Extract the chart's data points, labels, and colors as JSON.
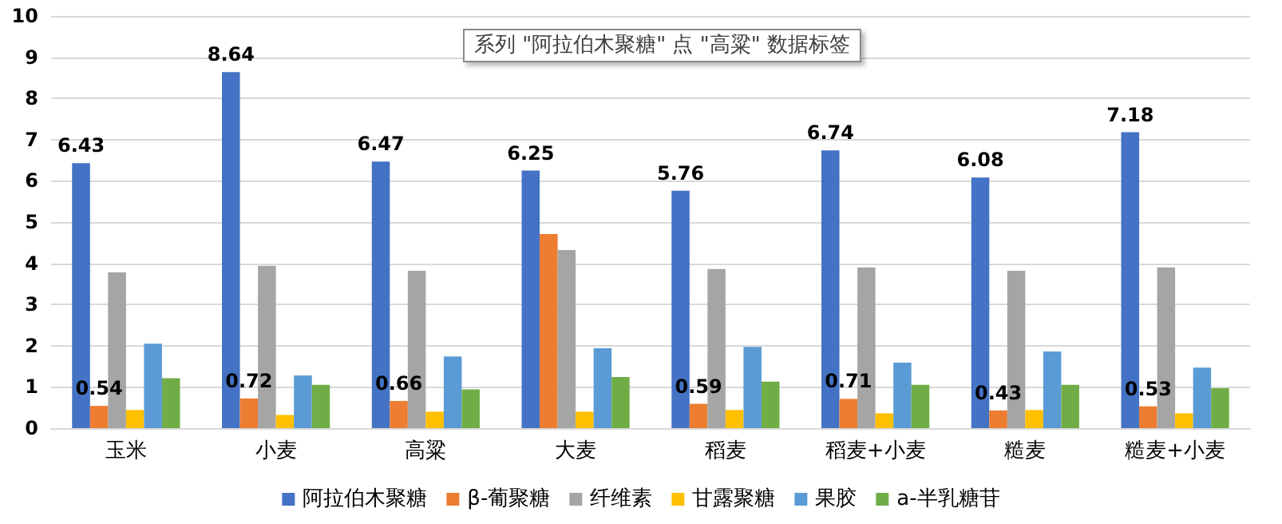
{
  "chart_data": {
    "type": "bar",
    "categories": [
      "玉米",
      "小麦",
      "高粱",
      "大麦",
      "稻麦",
      "稻麦+小麦",
      "糙麦",
      "糙麦+小麦"
    ],
    "series": [
      {
        "name": "阿拉伯木聚糖",
        "color": "#4472c4",
        "values": [
          6.43,
          8.64,
          6.47,
          6.25,
          5.76,
          6.74,
          6.08,
          7.18
        ],
        "value_labels": [
          "6.43",
          "8.64",
          "6.47",
          "6.25",
          "5.76",
          "6.74",
          "6.08",
          "7.18"
        ]
      },
      {
        "name": "β-葡聚糖",
        "color": "#ed7d31",
        "values": [
          0.54,
          0.72,
          0.66,
          4.71,
          0.59,
          0.71,
          0.43,
          0.53
        ],
        "value_labels": [
          "0.54",
          "0.72",
          "0.66",
          null,
          "0.59",
          "0.71",
          "0.43",
          "0.53"
        ]
      },
      {
        "name": "纤维素",
        "color": "#a5a5a5",
        "values": [
          3.78,
          3.94,
          3.82,
          4.32,
          3.86,
          3.9,
          3.82,
          3.9
        ]
      },
      {
        "name": "甘露聚糖",
        "color": "#ffc000",
        "values": [
          0.44,
          0.32,
          0.4,
          0.4,
          0.44,
          0.36,
          0.44,
          0.36
        ]
      },
      {
        "name": "果胶",
        "color": "#5b9bd5",
        "values": [
          2.05,
          1.28,
          1.74,
          1.94,
          1.97,
          1.59,
          1.86,
          1.47
        ]
      },
      {
        "name": "a-半乳糖苷",
        "color": "#70ad47",
        "values": [
          1.21,
          1.05,
          0.94,
          1.24,
          1.13,
          1.05,
          1.05,
          0.97
        ]
      }
    ],
    "ylim": [
      0,
      10
    ],
    "yticks": [
      0,
      1,
      2,
      3,
      4,
      5,
      6,
      7,
      8,
      9,
      10
    ],
    "grid": "y",
    "legend": "bottom",
    "annotations": [
      "系列 \"阿拉伯木聚糖\" 点 \"高粱\" 数据标签"
    ]
  }
}
